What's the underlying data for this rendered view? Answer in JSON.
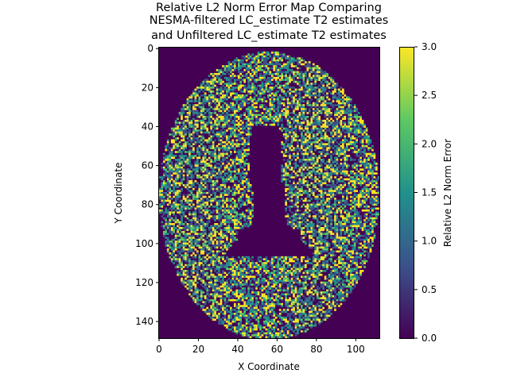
{
  "chart_data": {
    "type": "heatmap",
    "title_lines": [
      "Relative L2 Norm Error Map Comparing",
      "NESMA-filtered LC_estimate T2 estimates",
      "and Unfiltered LC_estimate T2 estimates"
    ],
    "xlabel": "X Coordinate",
    "ylabel": "Y Coordinate",
    "xlim": [
      0,
      112
    ],
    "ylim": [
      149,
      0
    ],
    "xticks": [
      0,
      20,
      40,
      60,
      80,
      100
    ],
    "yticks": [
      0,
      20,
      40,
      60,
      80,
      100,
      120,
      140
    ],
    "colorbar": {
      "label": "Relative L2 Norm Error",
      "range": [
        0.0,
        3.0
      ],
      "ticks": [
        "0.0",
        "0.5",
        "1.0",
        "1.5",
        "2.0",
        "2.5",
        "3.0"
      ],
      "colormap": "viridis",
      "colors": [
        "#440154",
        "#3b528b",
        "#21918c",
        "#5ec962",
        "#fde725"
      ]
    },
    "mask": {
      "brain_ellipse": {
        "center_x": 56,
        "center_y": 76,
        "radius_x": 56,
        "radius_y": 74
      },
      "ventricles": "dark (0.0) butterfly-shaped central region spanning x≈40–72, y≈40–105"
    }
  }
}
